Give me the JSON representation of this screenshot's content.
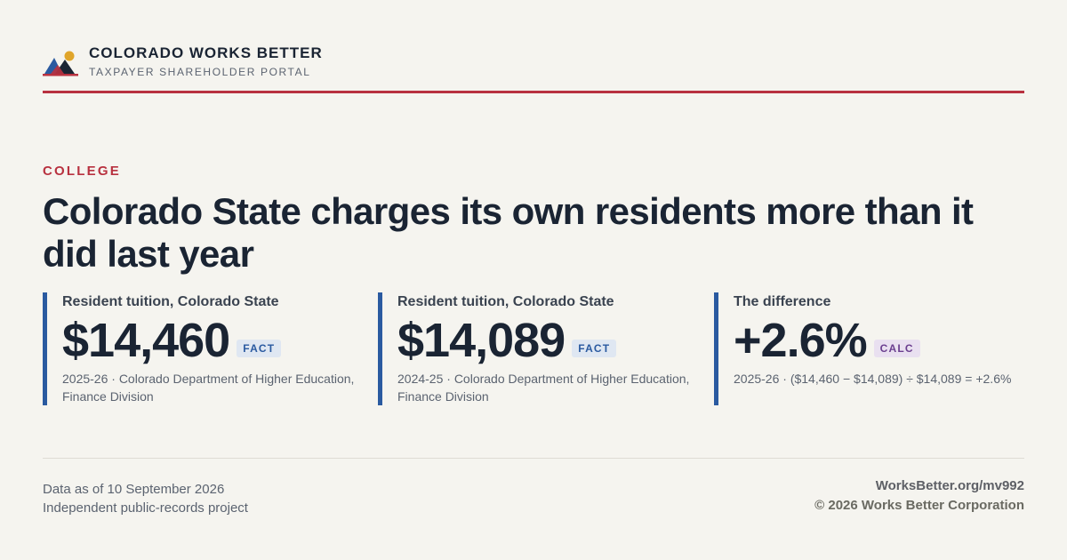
{
  "brand": {
    "title": "COLORADO WORKS BETTER",
    "subtitle": "TAXPAYER SHAREHOLDER PORTAL",
    "logo_icon": "mountains-sun-logo-icon",
    "accent_color": "#b8313f",
    "bar_color": "#2a5aa0"
  },
  "article": {
    "kicker": "COLLEGE",
    "headline": "Colorado State charges its own residents more than it did last year"
  },
  "stats": [
    {
      "label": "Resident tuition, Colorado State",
      "value": "$14,460",
      "badge": "FACT",
      "note": "2025-26 · Colorado Department of Higher Education, Finance Division"
    },
    {
      "label": "Resident tuition, Colorado State",
      "value": "$14,089",
      "badge": "FACT",
      "note": "2024-25 · Colorado Department of Higher Education, Finance Division"
    },
    {
      "label": "The difference",
      "value": "+2.6%",
      "badge": "CALC",
      "note": "2025-26 · ($14,460 − $14,089) ÷ $14,089 = +2.6%"
    }
  ],
  "footer": {
    "data_as_of": "Data as of 10 September 2026",
    "project": "Independent public-records project",
    "url": "WorksBetter.org/mv992",
    "copyright": "© 2026 Works Better Corporation"
  }
}
